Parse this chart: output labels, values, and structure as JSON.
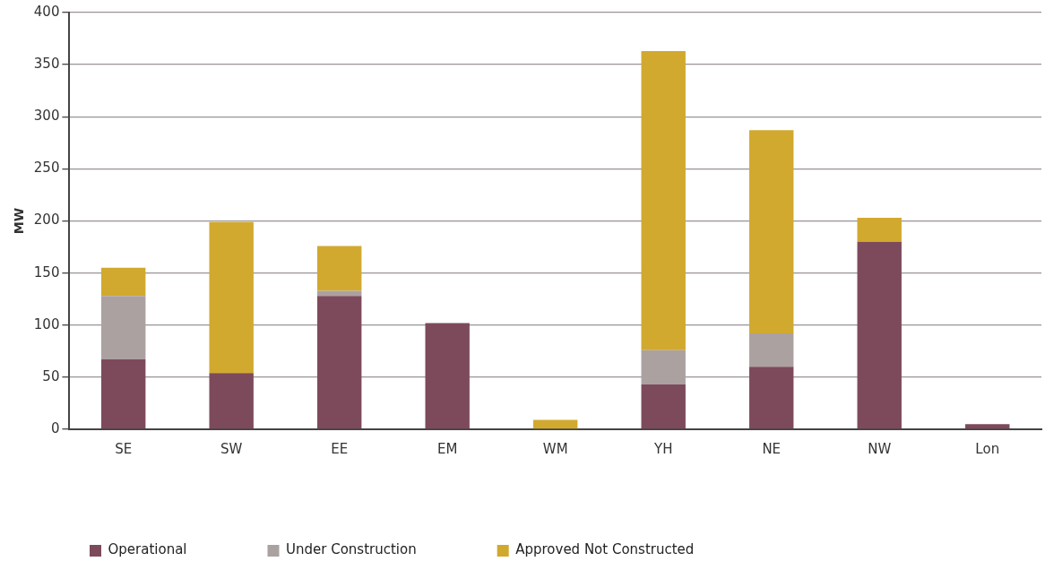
{
  "chart_data": {
    "type": "bar",
    "ylabel": "MW",
    "categories": [
      "SE",
      "SW",
      "EE",
      "EM",
      "WM",
      "YH",
      "NE",
      "NW",
      "Lon"
    ],
    "stacked": true,
    "ylim": [
      0,
      400
    ],
    "yticks": [
      0,
      50,
      100,
      150,
      200,
      250,
      300,
      350,
      400
    ],
    "grid": "y",
    "legend": "bottom left",
    "series": [
      {
        "name": "Operational",
        "color": "#7d4a5c",
        "values": [
          67,
          54,
          128,
          102,
          0,
          43,
          60,
          180,
          5
        ]
      },
      {
        "name": "Under Construction",
        "color": "#aba1a1",
        "values": [
          61,
          0,
          5,
          0,
          0,
          33,
          32,
          0,
          0
        ]
      },
      {
        "name": "Approved Not Constructed",
        "color": "#d1a92e",
        "values": [
          27,
          145,
          43,
          0,
          9,
          287,
          195,
          23,
          0
        ]
      }
    ]
  }
}
